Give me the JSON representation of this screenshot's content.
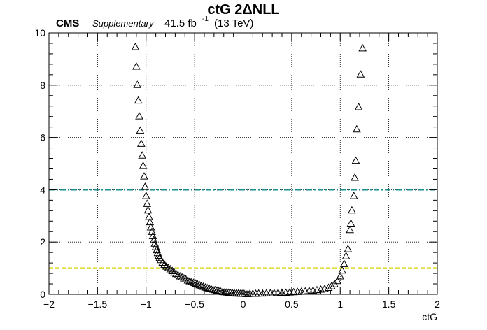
{
  "header": {
    "title": "ctG 2ΔNLL",
    "experiment": "CMS",
    "status": "Supplementary",
    "luminosity_value": "41.5 fb",
    "luminosity_exponent": "-1",
    "energy": "(13 TeV)"
  },
  "colors": {
    "threshold_4": "#1a8f8f",
    "threshold_1": "#d4d400",
    "markers": "#000000",
    "grid": "#000000"
  },
  "chart_data": {
    "type": "scatter",
    "title": "ctG 2ΔNLL",
    "xlabel": "ctG",
    "ylabel": "",
    "xlim": [
      -2,
      2
    ],
    "ylim": [
      0,
      10
    ],
    "x_ticks": [
      -2,
      -1.5,
      -1,
      -0.5,
      0,
      0.5,
      1,
      1.5,
      2
    ],
    "x_tick_labels": [
      "−2",
      "−1.5",
      "−1",
      "−0.5",
      "0",
      "0.5",
      "1",
      "1.5",
      "2"
    ],
    "y_ticks": [
      0,
      2,
      4,
      6,
      8,
      10
    ],
    "y_tick_labels": [
      "0",
      "2",
      "4",
      "6",
      "8",
      "10"
    ],
    "grid": true,
    "marker": "open-triangle",
    "reference_lines": [
      {
        "y": 4,
        "style": "dash-dot",
        "color": "#1a8f8f"
      },
      {
        "y": 1,
        "style": "dashed",
        "color": "#d4d400"
      }
    ],
    "series": [
      {
        "x": [
          -1.11,
          -1.1,
          -1.09,
          -1.08,
          -1.07,
          -1.06,
          -1.05,
          -1.04,
          -1.03,
          -1.02,
          -1.01,
          -1.0,
          -0.99,
          -0.98,
          -0.97,
          -0.96,
          -0.95,
          -0.94,
          -0.93,
          -0.92,
          -0.91,
          -0.9,
          -0.89,
          -0.88,
          -0.87,
          -0.86,
          -0.85,
          -0.83,
          -0.81,
          -0.79,
          -0.77,
          -0.75,
          -0.73,
          -0.71,
          -0.69,
          -0.67,
          -0.65,
          -0.63,
          -0.61,
          -0.59,
          -0.57,
          -0.55,
          -0.53,
          -0.51,
          -0.49,
          -0.47,
          -0.45,
          -0.43,
          -0.41,
          -0.39,
          -0.37,
          -0.35,
          -0.33,
          -0.31,
          -0.29,
          -0.27,
          -0.25,
          -0.23,
          -0.21,
          -0.19,
          -0.17,
          -0.15,
          -0.13,
          -0.11,
          -0.09,
          -0.07,
          -0.05,
          -0.03,
          -0.01,
          0.01,
          0.03,
          0.05,
          0.07,
          0.1,
          0.13,
          0.16,
          0.2,
          0.24,
          0.28,
          0.32,
          0.36,
          0.4,
          0.44,
          0.48,
          0.52,
          0.56,
          0.6,
          0.64,
          0.68,
          0.72,
          0.76,
          0.8,
          0.84,
          0.88,
          0.91,
          0.94,
          0.97,
          1.0,
          1.02,
          1.04,
          1.06,
          1.08,
          1.1,
          1.11,
          1.12,
          1.14,
          1.15,
          1.16,
          1.17,
          1.19,
          1.21,
          1.23
        ],
        "y": [
          9.45,
          8.7,
          8.0,
          7.4,
          6.8,
          6.25,
          5.75,
          5.3,
          4.9,
          4.5,
          4.1,
          3.75,
          3.45,
          3.2,
          2.95,
          2.75,
          2.55,
          2.38,
          2.22,
          2.07,
          1.93,
          1.8,
          1.68,
          1.57,
          1.47,
          1.38,
          1.3,
          1.2,
          1.12,
          1.05,
          1.0,
          0.95,
          0.88,
          0.82,
          0.77,
          0.72,
          0.68,
          0.64,
          0.6,
          0.56,
          0.52,
          0.49,
          0.46,
          0.43,
          0.4,
          0.37,
          0.34,
          0.31,
          0.28,
          0.25,
          0.23,
          0.21,
          0.19,
          0.17,
          0.15,
          0.13,
          0.11,
          0.09,
          0.08,
          0.07,
          0.06,
          0.05,
          0.04,
          0.03,
          0.03,
          0.02,
          0.02,
          0.01,
          0.01,
          0.01,
          0.0,
          0.0,
          0.01,
          0.01,
          0.01,
          0.02,
          0.02,
          0.03,
          0.03,
          0.03,
          0.04,
          0.05,
          0.05,
          0.06,
          0.07,
          0.08,
          0.09,
          0.1,
          0.12,
          0.13,
          0.15,
          0.17,
          0.2,
          0.24,
          0.3,
          0.38,
          0.5,
          0.68,
          0.9,
          1.15,
          1.45,
          1.72,
          2.45,
          2.7,
          3.2,
          3.75,
          4.45,
          5.1,
          6.3,
          7.15,
          8.4,
          9.4
        ]
      }
    ]
  }
}
